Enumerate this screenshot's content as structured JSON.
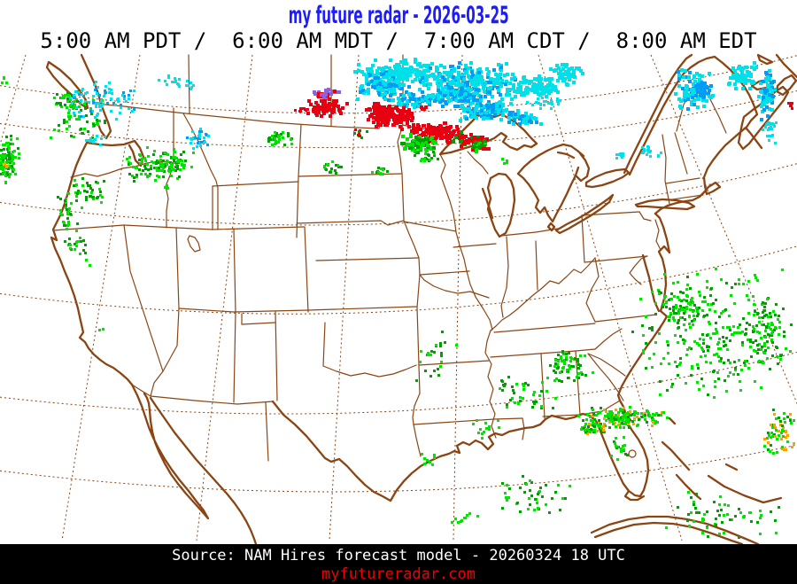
{
  "header": {
    "title": "my future radar - 2026-03-25",
    "subtitle": "5:00 AM PDT /  6:00 AM MDT /  7:00 AM CDT /  8:00 AM EDT",
    "title_color": "#1C1CFF",
    "subtitle_color": "#000000"
  },
  "footer": {
    "source": "Source: NAM Hires forecast model - 20260324 18 UTC",
    "website": "myfutureradar.com",
    "bg_color": "#000000",
    "source_color": "#FFFFFF",
    "website_color": "#EE0000"
  },
  "map": {
    "background": "#FFFFFF",
    "line_color": "#8B4513"
  },
  "radar": {
    "palette": {
      "G": "#00E400",
      "g": "#00A000",
      "C": "#00E0E8",
      "B": "#009CF5",
      "P": "#8E62D9",
      "R": "#E80010",
      "O": "#FFA000"
    },
    "legend_meaning": {
      "G": "rain-light",
      "g": "rain-moderate",
      "C": "snow-light",
      "B": "snow-moderate",
      "P": "ice-pellets",
      "R": "freezing-rain",
      "O": "rain-heavy"
    },
    "blobs": [
      [
        8,
        178,
        13,
        30,
        100,
        3,
        "GGg"
      ],
      [
        5,
        184,
        5,
        6,
        3,
        3,
        "O"
      ],
      [
        5,
        90,
        5,
        5,
        4,
        3,
        "G"
      ],
      [
        75,
        112,
        20,
        16,
        30,
        3,
        "Gg"
      ],
      [
        88,
        132,
        36,
        30,
        60,
        3,
        "Gg"
      ],
      [
        112,
        112,
        40,
        26,
        85,
        3,
        "CCCB"
      ],
      [
        105,
        155,
        14,
        8,
        12,
        3,
        "C"
      ],
      [
        200,
        92,
        26,
        9,
        22,
        3,
        "C"
      ],
      [
        225,
        155,
        16,
        12,
        30,
        3,
        "CCB"
      ],
      [
        180,
        184,
        44,
        20,
        130,
        3,
        "GGg"
      ],
      [
        95,
        215,
        24,
        20,
        40,
        3,
        "Gg"
      ],
      [
        72,
        238,
        12,
        24,
        28,
        3,
        "Gg"
      ],
      [
        85,
        275,
        22,
        26,
        26,
        3,
        "Gg"
      ],
      [
        310,
        155,
        20,
        9,
        32,
        3,
        "Gg"
      ],
      [
        373,
        188,
        12,
        7,
        20,
        3,
        "Gg"
      ],
      [
        405,
        150,
        8,
        8,
        10,
        3,
        "GRg"
      ],
      [
        427,
        192,
        10,
        6,
        12,
        3,
        "Gg"
      ],
      [
        113,
        370,
        3,
        3,
        2,
        3,
        "G"
      ],
      [
        185,
        210,
        4,
        3,
        3,
        3,
        "G"
      ],
      [
        455,
        80,
        60,
        16,
        170,
        4,
        "C"
      ],
      [
        530,
        90,
        65,
        22,
        280,
        4,
        "CCCB"
      ],
      [
        605,
        95,
        35,
        14,
        110,
        4,
        "C"
      ],
      [
        638,
        80,
        20,
        12,
        45,
        4,
        "C"
      ],
      [
        430,
        95,
        30,
        18,
        100,
        4,
        "CB"
      ],
      [
        470,
        110,
        40,
        10,
        80,
        4,
        "CB"
      ],
      [
        548,
        122,
        40,
        12,
        130,
        4,
        "BC"
      ],
      [
        515,
        105,
        30,
        10,
        60,
        4,
        "BC"
      ],
      [
        590,
        132,
        22,
        8,
        35,
        4,
        "CB"
      ],
      [
        615,
        115,
        25,
        8,
        25,
        3,
        "C"
      ],
      [
        368,
        104,
        16,
        8,
        35,
        4,
        "PPR"
      ],
      [
        368,
        120,
        24,
        12,
        70,
        4,
        "R"
      ],
      [
        340,
        122,
        10,
        6,
        10,
        3,
        "R"
      ],
      [
        445,
        130,
        35,
        14,
        140,
        4,
        "R"
      ],
      [
        490,
        148,
        32,
        12,
        120,
        4,
        "R"
      ],
      [
        425,
        122,
        14,
        9,
        35,
        4,
        "R"
      ],
      [
        520,
        155,
        16,
        9,
        40,
        4,
        "RRg"
      ],
      [
        470,
        160,
        22,
        11,
        80,
        4,
        "GGg"
      ],
      [
        540,
        160,
        14,
        10,
        50,
        4,
        "GgR"
      ],
      [
        480,
        175,
        15,
        7,
        20,
        3,
        "Gg"
      ],
      [
        570,
        180,
        6,
        5,
        6,
        3,
        "G"
      ],
      [
        782,
        98,
        22,
        26,
        90,
        4,
        "CCB"
      ],
      [
        790,
        100,
        8,
        12,
        25,
        4,
        "B"
      ],
      [
        836,
        84,
        18,
        18,
        60,
        4,
        "C"
      ],
      [
        864,
        105,
        10,
        30,
        70,
        4,
        "CB"
      ],
      [
        868,
        145,
        8,
        18,
        25,
        3,
        "C"
      ],
      [
        730,
        170,
        16,
        8,
        20,
        3,
        "C"
      ],
      [
        700,
        174,
        6,
        5,
        8,
        3,
        "C"
      ],
      [
        890,
        118,
        5,
        7,
        7,
        3,
        "R"
      ],
      [
        800,
        375,
        95,
        80,
        250,
        3,
        "GgG"
      ],
      [
        770,
        345,
        30,
        25,
        70,
        3,
        "Gg"
      ],
      [
        862,
        375,
        32,
        45,
        90,
        3,
        "Gg"
      ],
      [
        638,
        412,
        30,
        20,
        70,
        3,
        "Gg"
      ],
      [
        590,
        442,
        40,
        22,
        40,
        3,
        "Gg"
      ],
      [
        700,
        470,
        56,
        13,
        170,
        3,
        "GGGgO"
      ],
      [
        668,
        482,
        16,
        10,
        40,
        3,
        "GGgO"
      ],
      [
        700,
        505,
        12,
        16,
        20,
        3,
        "Gg"
      ],
      [
        600,
        560,
        45,
        28,
        45,
        3,
        "Gg"
      ],
      [
        522,
        585,
        18,
        10,
        10,
        3,
        "G"
      ],
      [
        820,
        580,
        75,
        28,
        60,
        3,
        "Gg"
      ],
      [
        878,
        488,
        20,
        28,
        60,
        3,
        "GGgO"
      ],
      [
        490,
        400,
        26,
        30,
        25,
        3,
        "Gg"
      ],
      [
        545,
        482,
        20,
        14,
        14,
        3,
        "G"
      ],
      [
        860,
        408,
        5,
        4,
        4,
        3,
        "OG"
      ],
      [
        480,
        518,
        12,
        8,
        8,
        3,
        "G"
      ]
    ]
  }
}
